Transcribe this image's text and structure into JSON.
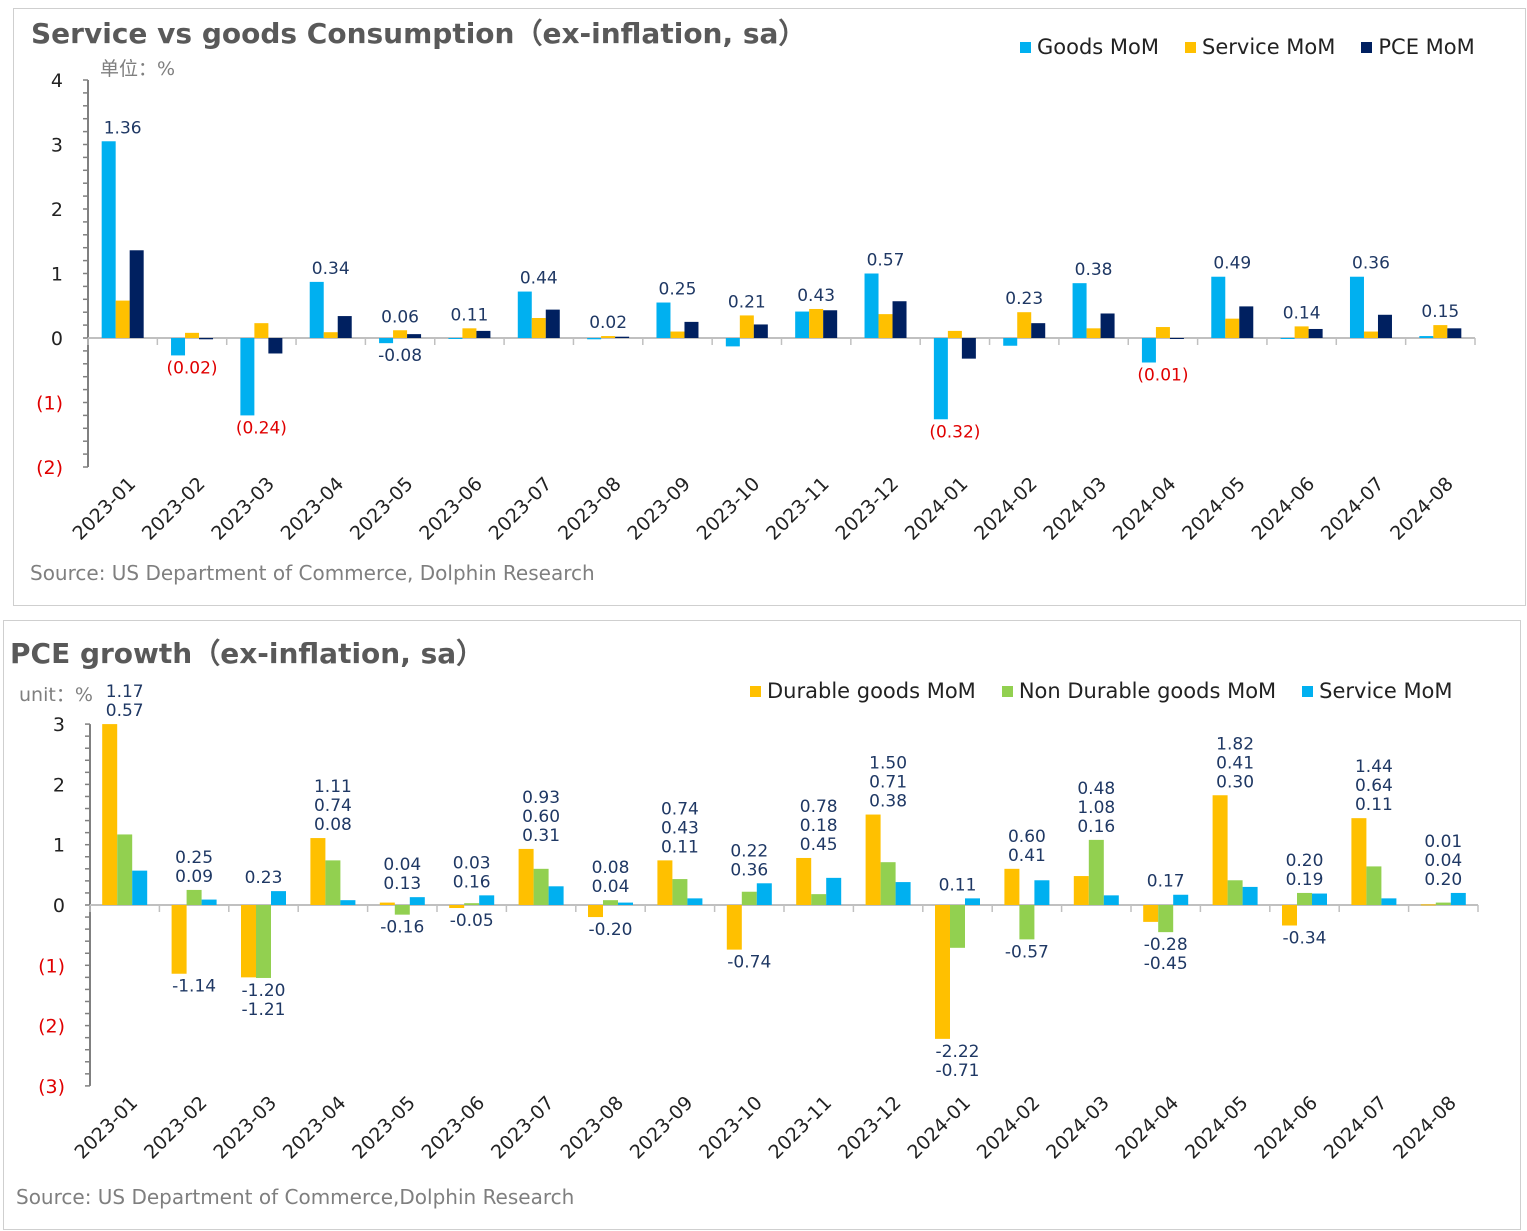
{
  "colors": {
    "goods": "#00b0f0",
    "service": "#ffc000",
    "pce": "#002060",
    "durable": "#ffc000",
    "nondurable": "#92d050",
    "service2": "#00b0f0",
    "label": "#1f3864",
    "negative": "#e00000"
  },
  "chart_data": [
    {
      "type": "bar",
      "title": "Service vs goods Consumption（ex-inflation, sa）",
      "unit_label": "单位：%",
      "source": "Source: US Department of Commerce, Dolphin Research",
      "legend_position": "top-right",
      "ylim": [
        -2,
        4
      ],
      "yticks": [
        "(2)",
        "(1)",
        "0",
        "1",
        "2",
        "3",
        "4"
      ],
      "ytick_values": [
        -2,
        -1,
        0,
        1,
        2,
        3,
        4
      ],
      "categories": [
        "2023-01",
        "2023-02",
        "2023-03",
        "2023-04",
        "2023-05",
        "2023-06",
        "2023-07",
        "2023-08",
        "2023-09",
        "2023-10",
        "2023-11",
        "2023-12",
        "2024-01",
        "2024-02",
        "2024-03",
        "2024-04",
        "2024-05",
        "2024-06",
        "2024-07",
        "2024-08"
      ],
      "series": [
        {
          "name": "Goods MoM",
          "values": [
            3.05,
            -0.27,
            -1.2,
            0.87,
            -0.08,
            0.0,
            0.72,
            -0.02,
            0.55,
            -0.13,
            0.41,
            1.0,
            -1.26,
            -0.12,
            0.85,
            -0.38,
            0.95,
            -0.01,
            0.95,
            0.03
          ]
        },
        {
          "name": "Service MoM",
          "values": [
            0.58,
            0.08,
            0.23,
            0.09,
            0.12,
            0.15,
            0.31,
            0.03,
            0.1,
            0.35,
            0.45,
            0.37,
            0.11,
            0.4,
            0.15,
            0.17,
            0.3,
            0.18,
            0.1,
            0.2
          ]
        },
        {
          "name": "PCE MoM",
          "values": [
            1.36,
            -0.02,
            -0.24,
            0.34,
            0.06,
            0.11,
            0.44,
            0.02,
            0.25,
            0.21,
            0.43,
            0.57,
            -0.32,
            0.23,
            0.38,
            -0.01,
            0.49,
            0.14,
            0.36,
            0.15
          ]
        }
      ],
      "data_labels": [
        "1.36",
        "(0.02)",
        "(0.24)",
        "0.34",
        "0.06",
        "0.11",
        "0.44",
        "0.02",
        "0.25",
        "0.21",
        "0.43",
        "0.57",
        "(0.32)",
        "0.23",
        "0.38",
        "(0.01)",
        "0.49",
        "0.14",
        "0.36",
        "0.15"
      ],
      "extra_labels": [
        {
          "category": "2023-05",
          "text": "-0.08"
        }
      ]
    },
    {
      "type": "bar",
      "title": "PCE growth（ex-inflation, sa）",
      "unit_label": "unit：%",
      "source": "Source: US Department of Commerce,Dolphin Research",
      "legend_position": "top-right",
      "ylim": [
        -3,
        3
      ],
      "yticks": [
        "(3)",
        "(2)",
        "(1)",
        "0",
        "1",
        "2",
        "3"
      ],
      "ytick_values": [
        -3,
        -2,
        -1,
        0,
        1,
        2,
        3
      ],
      "categories": [
        "2023-01",
        "2023-02",
        "2023-03",
        "2023-04",
        "2023-05",
        "2023-06",
        "2023-07",
        "2023-08",
        "2023-09",
        "2023-10",
        "2023-11",
        "2023-12",
        "2024-01",
        "2024-02",
        "2024-03",
        "2024-04",
        "2024-05",
        "2024-06",
        "2024-07",
        "2024-08"
      ],
      "series": [
        {
          "name": "Durable goods MoM",
          "values": [
            3.0,
            -1.14,
            -1.2,
            1.11,
            0.04,
            -0.05,
            0.93,
            -0.2,
            0.74,
            -0.74,
            0.78,
            1.5,
            -2.22,
            0.6,
            0.48,
            -0.28,
            1.82,
            -0.34,
            1.44,
            0.01
          ],
          "labels": [
            "",
            "-1.14",
            "-1.20",
            "1.11",
            "0.04",
            "-0.05",
            "0.93",
            "-0.20",
            "0.74",
            "-0.74",
            "0.78",
            "1.50",
            "-2.22",
            "0.60",
            "0.48",
            "-0.28",
            "1.82",
            "-0.34",
            "1.44",
            "0.01"
          ]
        },
        {
          "name": "Non Durable goods MoM",
          "values": [
            1.17,
            0.25,
            -1.21,
            0.74,
            -0.16,
            0.03,
            0.6,
            0.08,
            0.43,
            0.22,
            0.18,
            0.71,
            -0.71,
            -0.57,
            1.08,
            -0.45,
            0.41,
            0.2,
            0.64,
            0.04
          ],
          "labels": [
            "1.17",
            "0.25",
            "-1.21",
            "0.74",
            "-0.16",
            "0.03",
            "0.60",
            "0.08",
            "0.43",
            "0.22",
            "0.18",
            "0.71",
            "-0.71",
            "-0.57",
            "1.08",
            "-0.45",
            "0.41",
            "0.20",
            "0.64",
            "0.04"
          ]
        },
        {
          "name": "Service MoM",
          "values": [
            0.57,
            0.09,
            0.23,
            0.08,
            0.13,
            0.16,
            0.31,
            0.04,
            0.11,
            0.36,
            0.45,
            0.38,
            0.11,
            0.41,
            0.16,
            0.17,
            0.3,
            0.19,
            0.11,
            0.2
          ],
          "labels": [
            "0.57",
            "0.09",
            "0.23",
            "0.08",
            "0.13",
            "0.16",
            "0.31",
            "0.04",
            "0.11",
            "0.36",
            "0.45",
            "0.38",
            "0.11",
            "0.41",
            "0.16",
            "0.17",
            "0.30",
            "0.19",
            "0.11",
            "0.20"
          ]
        }
      ]
    }
  ]
}
